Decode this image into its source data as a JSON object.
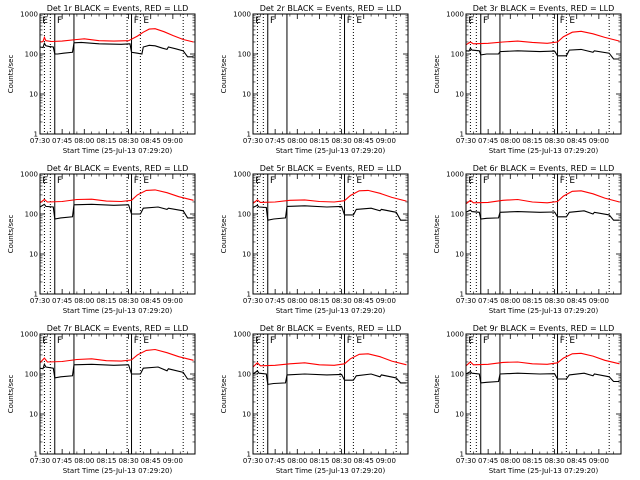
{
  "chart_data": {
    "type": "line",
    "x_tick_labels": [
      "07:30",
      "07:45",
      "08:00",
      "08:15",
      "08:30",
      "08:45",
      "09:00"
    ],
    "x_range_min": [
      0,
      105
    ],
    "x_ticks_min": [
      0,
      15,
      30,
      45,
      60,
      75,
      90
    ],
    "y_scale": "log",
    "y_range": [
      1,
      1000
    ],
    "y_tick_values": [
      1,
      10,
      100,
      1000
    ],
    "y_tick_labels": [
      "1",
      "10",
      "100",
      "1000"
    ],
    "ylabel": "Counts/sec",
    "xlabel": "Start Time (25-Jul-13 07:29:20)",
    "series_colors": {
      "events": "#000000",
      "lld": "#ff0000"
    },
    "solid_vlines_min": [
      10,
      23,
      62
    ],
    "dotted_vlines_min": [
      3,
      7,
      59,
      68,
      97
    ],
    "region_labels": [
      {
        "text": "E",
        "x_min": 1.5
      },
      {
        "text": "F",
        "x_min": 11.5
      },
      {
        "text": "F",
        "x_min": 63.5
      },
      {
        "text": "E",
        "x_min": 70
      }
    ],
    "panels": [
      {
        "title": "Det 1r BLACK = Events, RED = LLD",
        "events": [
          [
            0,
            150
          ],
          [
            2,
            145
          ],
          [
            3,
            185
          ],
          [
            4,
            160
          ],
          [
            6,
            155
          ],
          [
            9,
            150
          ],
          [
            10,
            100
          ],
          [
            12,
            100
          ],
          [
            16,
            105
          ],
          [
            22,
            110
          ],
          [
            23,
            190
          ],
          [
            28,
            195
          ],
          [
            40,
            180
          ],
          [
            55,
            175
          ],
          [
            61,
            180
          ],
          [
            62,
            110
          ],
          [
            66,
            105
          ],
          [
            69,
            100
          ],
          [
            70,
            150
          ],
          [
            74,
            165
          ],
          [
            78,
            160
          ],
          [
            83,
            140
          ],
          [
            86,
            130
          ],
          [
            87,
            150
          ],
          [
            92,
            135
          ],
          [
            97,
            120
          ],
          [
            100,
            85
          ],
          [
            104,
            85
          ]
        ],
        "lld": [
          [
            0,
            200
          ],
          [
            2,
            205
          ],
          [
            3,
            260
          ],
          [
            4,
            215
          ],
          [
            8,
            205
          ],
          [
            15,
            210
          ],
          [
            25,
            230
          ],
          [
            30,
            240
          ],
          [
            40,
            215
          ],
          [
            50,
            210
          ],
          [
            60,
            215
          ],
          [
            66,
            280
          ],
          [
            70,
            350
          ],
          [
            74,
            420
          ],
          [
            78,
            430
          ],
          [
            84,
            360
          ],
          [
            90,
            290
          ],
          [
            97,
            230
          ],
          [
            104,
            200
          ]
        ]
      },
      {
        "title": "Det 2r BLACK = Events, RED = LLD",
        "events": [],
        "lld": []
      },
      {
        "title": "Det 3r BLACK = Events, RED = LLD",
        "events": [
          [
            0,
            120
          ],
          [
            2,
            118
          ],
          [
            3,
            140
          ],
          [
            4,
            125
          ],
          [
            9,
            120
          ],
          [
            10,
            95
          ],
          [
            14,
            100
          ],
          [
            22,
            100
          ],
          [
            23,
            115
          ],
          [
            35,
            120
          ],
          [
            50,
            115
          ],
          [
            60,
            118
          ],
          [
            62,
            90
          ],
          [
            68,
            90
          ],
          [
            70,
            125
          ],
          [
            78,
            130
          ],
          [
            86,
            110
          ],
          [
            87,
            120
          ],
          [
            97,
            105
          ],
          [
            100,
            75
          ],
          [
            104,
            75
          ]
        ],
        "lld": [
          [
            0,
            170
          ],
          [
            3,
            200
          ],
          [
            5,
            180
          ],
          [
            15,
            185
          ],
          [
            25,
            200
          ],
          [
            35,
            210
          ],
          [
            45,
            195
          ],
          [
            55,
            185
          ],
          [
            62,
            200
          ],
          [
            66,
            270
          ],
          [
            72,
            350
          ],
          [
            78,
            370
          ],
          [
            86,
            320
          ],
          [
            94,
            260
          ],
          [
            104,
            210
          ]
        ]
      },
      {
        "title": "Det 4r BLACK = Events, RED = LLD",
        "events": [
          [
            0,
            150
          ],
          [
            3,
            175
          ],
          [
            4,
            155
          ],
          [
            9,
            150
          ],
          [
            10,
            75
          ],
          [
            14,
            80
          ],
          [
            22,
            85
          ],
          [
            23,
            170
          ],
          [
            35,
            175
          ],
          [
            50,
            165
          ],
          [
            60,
            170
          ],
          [
            62,
            100
          ],
          [
            68,
            100
          ],
          [
            70,
            140
          ],
          [
            80,
            150
          ],
          [
            86,
            130
          ],
          [
            87,
            140
          ],
          [
            97,
            120
          ],
          [
            100,
            80
          ],
          [
            104,
            80
          ]
        ],
        "lld": [
          [
            0,
            190
          ],
          [
            3,
            230
          ],
          [
            5,
            200
          ],
          [
            15,
            205
          ],
          [
            25,
            230
          ],
          [
            35,
            235
          ],
          [
            45,
            210
          ],
          [
            55,
            205
          ],
          [
            62,
            220
          ],
          [
            66,
            300
          ],
          [
            72,
            390
          ],
          [
            78,
            400
          ],
          [
            86,
            340
          ],
          [
            94,
            270
          ],
          [
            104,
            220
          ]
        ]
      },
      {
        "title": "Det 5r BLACK = Events, RED = LLD",
        "events": [
          [
            0,
            145
          ],
          [
            3,
            165
          ],
          [
            4,
            150
          ],
          [
            9,
            145
          ],
          [
            10,
            70
          ],
          [
            14,
            75
          ],
          [
            22,
            80
          ],
          [
            23,
            155
          ],
          [
            35,
            160
          ],
          [
            50,
            150
          ],
          [
            60,
            155
          ],
          [
            62,
            95
          ],
          [
            68,
            95
          ],
          [
            70,
            130
          ],
          [
            80,
            140
          ],
          [
            86,
            120
          ],
          [
            87,
            130
          ],
          [
            97,
            110
          ],
          [
            100,
            70
          ],
          [
            104,
            70
          ]
        ],
        "lld": [
          [
            0,
            185
          ],
          [
            3,
            225
          ],
          [
            5,
            195
          ],
          [
            15,
            200
          ],
          [
            25,
            220
          ],
          [
            35,
            225
          ],
          [
            45,
            205
          ],
          [
            55,
            200
          ],
          [
            62,
            215
          ],
          [
            66,
            290
          ],
          [
            72,
            380
          ],
          [
            78,
            390
          ],
          [
            86,
            330
          ],
          [
            94,
            260
          ],
          [
            104,
            210
          ]
        ]
      },
      {
        "title": "Det 6r BLACK = Events, RED = LLD",
        "events": [
          [
            0,
            110
          ],
          [
            3,
            125
          ],
          [
            4,
            115
          ],
          [
            9,
            110
          ],
          [
            10,
            75
          ],
          [
            14,
            78
          ],
          [
            22,
            80
          ],
          [
            23,
            110
          ],
          [
            35,
            115
          ],
          [
            50,
            110
          ],
          [
            60,
            112
          ],
          [
            62,
            85
          ],
          [
            68,
            85
          ],
          [
            70,
            110
          ],
          [
            80,
            120
          ],
          [
            86,
            100
          ],
          [
            87,
            110
          ],
          [
            97,
            95
          ],
          [
            100,
            70
          ],
          [
            104,
            70
          ]
        ],
        "lld": [
          [
            0,
            180
          ],
          [
            3,
            220
          ],
          [
            5,
            190
          ],
          [
            15,
            195
          ],
          [
            25,
            220
          ],
          [
            35,
            230
          ],
          [
            45,
            200
          ],
          [
            55,
            190
          ],
          [
            62,
            205
          ],
          [
            66,
            280
          ],
          [
            72,
            370
          ],
          [
            78,
            380
          ],
          [
            86,
            320
          ],
          [
            94,
            250
          ],
          [
            104,
            200
          ]
        ]
      },
      {
        "title": "Det 7r BLACK = Events, RED = LLD",
        "events": [
          [
            0,
            140
          ],
          [
            2,
            135
          ],
          [
            3,
            175
          ],
          [
            4,
            150
          ],
          [
            9,
            140
          ],
          [
            10,
            80
          ],
          [
            14,
            85
          ],
          [
            22,
            90
          ],
          [
            23,
            170
          ],
          [
            35,
            175
          ],
          [
            50,
            165
          ],
          [
            60,
            170
          ],
          [
            62,
            100
          ],
          [
            68,
            100
          ],
          [
            70,
            140
          ],
          [
            80,
            150
          ],
          [
            86,
            120
          ],
          [
            87,
            135
          ],
          [
            97,
            110
          ],
          [
            100,
            75
          ],
          [
            104,
            75
          ]
        ],
        "lld": [
          [
            0,
            190
          ],
          [
            3,
            250
          ],
          [
            5,
            200
          ],
          [
            15,
            205
          ],
          [
            25,
            230
          ],
          [
            35,
            240
          ],
          [
            45,
            215
          ],
          [
            55,
            210
          ],
          [
            62,
            225
          ],
          [
            66,
            300
          ],
          [
            72,
            390
          ],
          [
            78,
            410
          ],
          [
            86,
            340
          ],
          [
            94,
            270
          ],
          [
            104,
            220
          ]
        ]
      },
      {
        "title": "Det 8r BLACK = Events, RED = LLD",
        "events": [
          [
            0,
            100
          ],
          [
            3,
            120
          ],
          [
            4,
            105
          ],
          [
            9,
            100
          ],
          [
            10,
            55
          ],
          [
            14,
            58
          ],
          [
            22,
            60
          ],
          [
            23,
            95
          ],
          [
            35,
            100
          ],
          [
            50,
            95
          ],
          [
            60,
            98
          ],
          [
            62,
            70
          ],
          [
            68,
            70
          ],
          [
            70,
            90
          ],
          [
            80,
            100
          ],
          [
            86,
            85
          ],
          [
            87,
            95
          ],
          [
            97,
            80
          ],
          [
            100,
            60
          ],
          [
            104,
            60
          ]
        ],
        "lld": [
          [
            0,
            150
          ],
          [
            3,
            190
          ],
          [
            5,
            160
          ],
          [
            15,
            165
          ],
          [
            25,
            180
          ],
          [
            35,
            190
          ],
          [
            45,
            170
          ],
          [
            55,
            165
          ],
          [
            62,
            180
          ],
          [
            66,
            240
          ],
          [
            72,
            310
          ],
          [
            78,
            320
          ],
          [
            86,
            270
          ],
          [
            94,
            210
          ],
          [
            104,
            170
          ]
        ]
      },
      {
        "title": "Det 9r BLACK = Events, RED = LLD",
        "events": [
          [
            0,
            100
          ],
          [
            3,
            115
          ],
          [
            4,
            105
          ],
          [
            9,
            100
          ],
          [
            10,
            60
          ],
          [
            14,
            62
          ],
          [
            22,
            65
          ],
          [
            23,
            100
          ],
          [
            35,
            105
          ],
          [
            50,
            100
          ],
          [
            60,
            102
          ],
          [
            62,
            75
          ],
          [
            68,
            75
          ],
          [
            70,
            95
          ],
          [
            80,
            105
          ],
          [
            86,
            90
          ],
          [
            87,
            100
          ],
          [
            97,
            85
          ],
          [
            100,
            65
          ],
          [
            104,
            65
          ]
        ],
        "lld": [
          [
            0,
            160
          ],
          [
            3,
            200
          ],
          [
            5,
            170
          ],
          [
            15,
            175
          ],
          [
            25,
            195
          ],
          [
            35,
            200
          ],
          [
            45,
            180
          ],
          [
            55,
            175
          ],
          [
            62,
            190
          ],
          [
            66,
            250
          ],
          [
            72,
            320
          ],
          [
            78,
            330
          ],
          [
            86,
            280
          ],
          [
            94,
            220
          ],
          [
            104,
            180
          ]
        ]
      }
    ]
  }
}
